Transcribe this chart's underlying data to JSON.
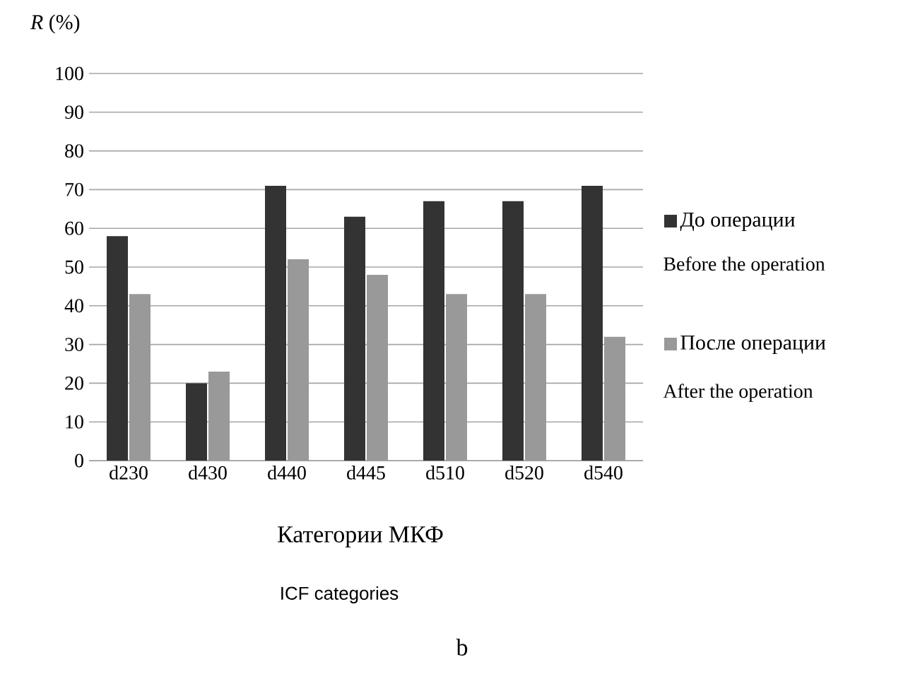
{
  "chart_data": {
    "type": "bar",
    "ylabel": "*R* (%)",
    "xlabel": "Категории МКФ",
    "categories": [
      "d230",
      "d430",
      "d440",
      "d445",
      "d510",
      "d520",
      "d540"
    ],
    "series": [
      {
        "name": "До операции",
        "color": "#333333",
        "values": [
          58,
          20,
          71,
          63,
          67,
          67,
          71
        ]
      },
      {
        "name": "После операции",
        "color": "#999999",
        "values": [
          43,
          23,
          52,
          48,
          43,
          43,
          32
        ]
      }
    ],
    "annotations": [
      "Before the operation",
      "After the operation",
      "ICF categories",
      "b"
    ],
    "ylim": [
      0,
      100
    ],
    "yticks": [
      0,
      10,
      20,
      30,
      40,
      50,
      60,
      70,
      80,
      90,
      100
    ],
    "grid": "y",
    "legend": "right"
  }
}
